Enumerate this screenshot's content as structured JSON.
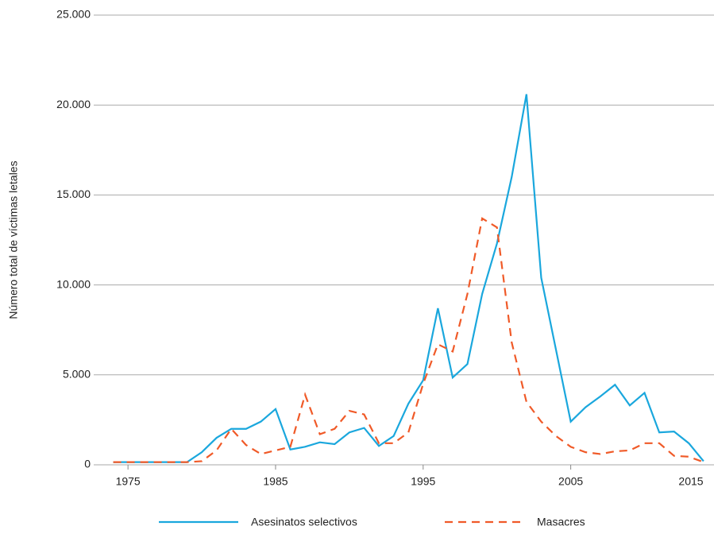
{
  "chart_data": {
    "type": "line",
    "y_label": "Número total de víctimas letales",
    "x": [
      1974,
      1975,
      1976,
      1977,
      1978,
      1979,
      1980,
      1981,
      1982,
      1983,
      1984,
      1985,
      1986,
      1987,
      1988,
      1989,
      1990,
      1991,
      1992,
      1993,
      1994,
      1995,
      1996,
      1997,
      1998,
      1999,
      2000,
      2001,
      2002,
      2003,
      2004,
      2005,
      2006,
      2007,
      2008,
      2009,
      2010,
      2011,
      2012,
      2013,
      2014
    ],
    "series": [
      {
        "name": "Asesinatos selectivos",
        "color": "#1aa7dd",
        "dash": false,
        "values": [
          150,
          150,
          150,
          150,
          150,
          150,
          700,
          1500,
          2000,
          2000,
          2400,
          3100,
          850,
          1000,
          1250,
          1150,
          1800,
          2050,
          1050,
          1600,
          3400,
          4700,
          8700,
          4850,
          5600,
          9500,
          12300,
          16000,
          20600,
          10400,
          6400,
          2400,
          3200,
          3800,
          4450,
          3300,
          4000,
          1800,
          1850,
          1200,
          200
        ]
      },
      {
        "name": "Masacres",
        "color": "#f05a28",
        "dash": true,
        "values": [
          150,
          150,
          150,
          150,
          150,
          150,
          200,
          800,
          2000,
          1100,
          600,
          800,
          1000,
          3900,
          1700,
          2000,
          3000,
          2800,
          1200,
          1200,
          1800,
          4500,
          6700,
          6300,
          9500,
          13700,
          13200,
          6800,
          3500,
          2400,
          1600,
          1000,
          700,
          600,
          750,
          800,
          1200,
          1200,
          500,
          450,
          150
        ]
      }
    ],
    "xlim": [
      1973.7,
      2014.6
    ],
    "xticks": [
      1975,
      1985,
      1995,
      2005,
      2015
    ],
    "ylim": [
      0,
      25000
    ],
    "yticks": [
      0,
      {
        "value": 5000,
        "label": "5.000"
      },
      {
        "value": 10000,
        "label": "10.000"
      },
      {
        "value": 15000,
        "label": "15.000"
      },
      {
        "value": 20000,
        "label": "20.000"
      },
      {
        "value": 25000,
        "label": "25.000"
      }
    ],
    "grid": true,
    "legend": "bottom"
  }
}
